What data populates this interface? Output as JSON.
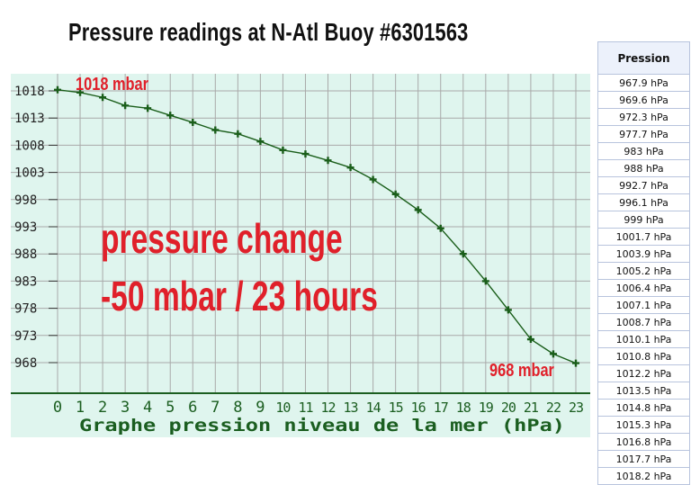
{
  "title": "Pressure readings at N-Atl Buoy #6301563",
  "chart_data": {
    "type": "line",
    "xlabel": "Graphe pression niveau de la mer (hPa)",
    "x": [
      0,
      1,
      2,
      3,
      4,
      5,
      6,
      7,
      8,
      9,
      10,
      11,
      12,
      13,
      14,
      15,
      16,
      17,
      18,
      19,
      20,
      21,
      22,
      23
    ],
    "y_tick_values": [
      1018,
      1013,
      1008,
      1003,
      998,
      993,
      988,
      983,
      978,
      973,
      968
    ],
    "ylim": [
      964.8,
      1021.5
    ],
    "xlim": [
      0,
      23
    ],
    "series": [
      {
        "values": [
          1018.2,
          1017.7,
          1016.8,
          1015.3,
          1014.8,
          1013.5,
          1012.2,
          1010.8,
          1010.1,
          1008.7,
          1007.1,
          1006.4,
          1005.2,
          1003.9,
          1001.7,
          999.0,
          996.1,
          992.7,
          988.0,
          983.0,
          977.7,
          972.3,
          969.6,
          967.9
        ]
      }
    ],
    "annotations": {
      "start_label": "1018 mbar",
      "end_label": "968 mbar",
      "change_line1": "pressure change",
      "change_line2": "-50 mbar / 23 hours"
    },
    "grid": true,
    "colors": {
      "background": "#dff5ee",
      "grid": "#a9a9a9",
      "line": "#1a5e1a",
      "axis_text": "#1b5e20",
      "annotation": "#e0202a"
    }
  },
  "table": {
    "header": "Pression",
    "rows": [
      "967.9 hPa",
      "969.6 hPa",
      "972.3 hPa",
      "977.7 hPa",
      "983 hPa",
      "988 hPa",
      "992.7 hPa",
      "996.1 hPa",
      "999 hPa",
      "1001.7 hPa",
      "1003.9 hPa",
      "1005.2 hPa",
      "1006.4 hPa",
      "1007.1 hPa",
      "1008.7 hPa",
      "1010.1 hPa",
      "1010.8 hPa",
      "1012.2 hPa",
      "1013.5 hPa",
      "1014.8 hPa",
      "1015.3 hPa",
      "1016.8 hPa",
      "1017.7 hPa",
      "1018.2 hPa"
    ]
  }
}
